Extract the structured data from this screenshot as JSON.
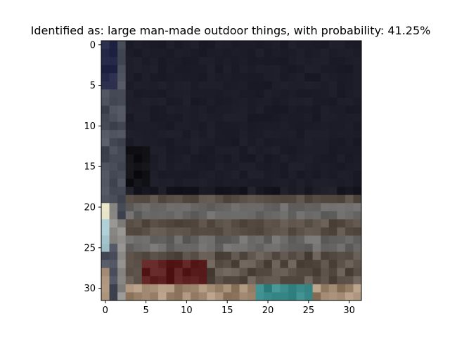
{
  "figure": {
    "title": "Identified as: large man-made outdoor things, with probability: 41.25%"
  },
  "image_grid": {
    "rows": 32,
    "cols": 32,
    "x_ticks": [
      "0",
      "5",
      "10",
      "15",
      "20",
      "25",
      "30"
    ],
    "y_ticks": [
      "0",
      "5",
      "10",
      "15",
      "20",
      "25",
      "30"
    ],
    "palette": {
      "sky": "#1c1c28",
      "sky_dark": "#191922",
      "edge_blue": "#262848",
      "pole": "#4a4e5a",
      "pole_light": "#8c8a86",
      "highlight": "#e8e4c8",
      "light_cyan": "#a8c8d0",
      "band_gray": "#6a6866",
      "band_brown": "#5a5048",
      "dark_red": "#5a1e1e",
      "teal": "#3a8a8a",
      "tan": "#a08870",
      "black": "#101014"
    }
  }
}
